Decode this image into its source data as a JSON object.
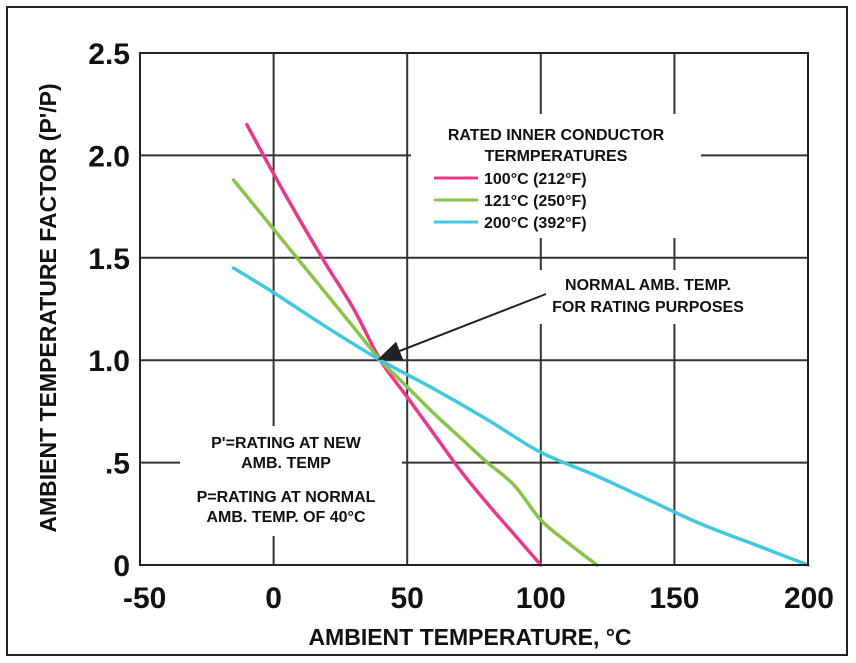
{
  "chart_data": {
    "type": "line",
    "title": "",
    "xlabel": "AMBIENT TEMPERATURE, °C",
    "ylabel": "AMBIENT TEMPERATURE FACTOR (P'/P)",
    "xlim": [
      -50,
      200
    ],
    "ylim": [
      0,
      2.5
    ],
    "grid": true,
    "x_ticks": [
      {
        "value": -50,
        "label": "-50"
      },
      {
        "value": 0,
        "label": "0"
      },
      {
        "value": 50,
        "label": "50"
      },
      {
        "value": 100,
        "label": "100"
      },
      {
        "value": 150,
        "label": "150"
      },
      {
        "value": 200,
        "label": "200"
      }
    ],
    "y_ticks": [
      {
        "value": 0,
        "label": "0"
      },
      {
        "value": 0.5,
        "label": ".5"
      },
      {
        "value": 1.0,
        "label": "1.0"
      },
      {
        "value": 1.5,
        "label": "1.5"
      },
      {
        "value": 2.0,
        "label": "2.0"
      },
      {
        "value": 2.5,
        "label": "2.5"
      }
    ],
    "legend": {
      "title_lines": [
        "RATED INNER CONDUCTOR",
        "TERMPERATURES"
      ],
      "placement": "top-right"
    },
    "series": [
      {
        "name": "100°C (212°F)",
        "color": "#e8388a",
        "x": [
          -10,
          0,
          10,
          20,
          30,
          40,
          50,
          60,
          70,
          80,
          90,
          100
        ],
        "y": [
          2.15,
          1.91,
          1.68,
          1.46,
          1.25,
          1.0,
          0.82,
          0.64,
          0.46,
          0.3,
          0.15,
          0
        ]
      },
      {
        "name": "121°C (250°F)",
        "color": "#8bc34a",
        "x": [
          -15,
          0,
          10,
          20,
          30,
          40,
          50,
          60,
          70,
          80,
          90,
          100,
          110,
          121
        ],
        "y": [
          1.88,
          1.64,
          1.48,
          1.32,
          1.16,
          1.0,
          0.87,
          0.74,
          0.62,
          0.5,
          0.39,
          0.22,
          0.11,
          0
        ]
      },
      {
        "name": "200°C (392°F)",
        "color": "#40c8e0",
        "x": [
          -15,
          0,
          20,
          40,
          60,
          80,
          100,
          120,
          140,
          160,
          180,
          200
        ],
        "y": [
          1.45,
          1.33,
          1.16,
          1.0,
          0.86,
          0.71,
          0.55,
          0.44,
          0.32,
          0.2,
          0.1,
          0
        ]
      }
    ],
    "annotations": [
      {
        "lines": [
          "NORMAL AMB. TEMP.",
          "FOR RATING PURPOSES"
        ],
        "arrow_to": {
          "x": 38,
          "y": 1.0
        }
      },
      {
        "lines": [
          "P'=RATING AT NEW",
          "AMB. TEMP"
        ]
      },
      {
        "lines": [
          "P=RATING AT NORMAL",
          "AMB. TEMP. OF 40°C"
        ]
      }
    ]
  }
}
